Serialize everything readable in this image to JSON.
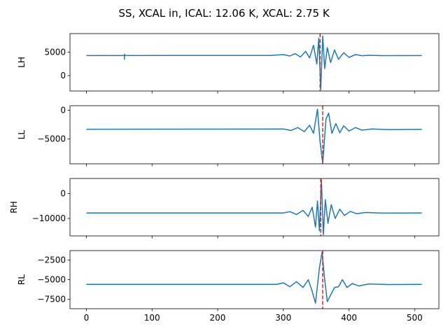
{
  "chart_data": {
    "title": "SS, XCAL in, ICAL: 12.06 K, XCAL: 2.75 K",
    "type": "line",
    "shared_x": {
      "lim": [
        -25,
        537
      ],
      "ticks": [
        0,
        100,
        200,
        300,
        400,
        500
      ],
      "tick_labels": [
        "0",
        "100",
        "200",
        "300",
        "400",
        "500"
      ]
    },
    "line_color": "#1f77b4",
    "marker_color": "#d62728",
    "panels": [
      {
        "ylabel": "LH",
        "ylim": [
          -3300,
          9000
        ],
        "yticks": [
          0,
          5000
        ],
        "ytick_labels": [
          "0",
          "5000"
        ],
        "baseline": 4300,
        "marker_x": 356,
        "glitch": {
          "x": 58,
          "min": 3400,
          "max": 4700
        },
        "series": [
          {
            "x": 0,
            "y": 4300
          },
          {
            "x": 280,
            "y": 4320
          },
          {
            "x": 300,
            "y": 4500
          },
          {
            "x": 310,
            "y": 4200
          },
          {
            "x": 318,
            "y": 4700
          },
          {
            "x": 326,
            "y": 4000
          },
          {
            "x": 334,
            "y": 5200
          },
          {
            "x": 340,
            "y": 3800
          },
          {
            "x": 346,
            "y": 6500
          },
          {
            "x": 351,
            "y": 2500
          },
          {
            "x": 354,
            "y": 8000
          },
          {
            "x": 357,
            "y": -3000
          },
          {
            "x": 360,
            "y": 8500
          },
          {
            "x": 363,
            "y": 1500
          },
          {
            "x": 367,
            "y": 6000
          },
          {
            "x": 372,
            "y": 2800
          },
          {
            "x": 378,
            "y": 5500
          },
          {
            "x": 384,
            "y": 3500
          },
          {
            "x": 392,
            "y": 4900
          },
          {
            "x": 400,
            "y": 3900
          },
          {
            "x": 410,
            "y": 4500
          },
          {
            "x": 420,
            "y": 4250
          },
          {
            "x": 430,
            "y": 4350
          },
          {
            "x": 450,
            "y": 4280
          },
          {
            "x": 511,
            "y": 4300
          }
        ]
      },
      {
        "ylabel": "LL",
        "ylim": [
          -9300,
          800
        ],
        "yticks": [
          0,
          -5000
        ],
        "ytick_labels": [
          "0",
          "−5000"
        ],
        "baseline": -3300,
        "marker_x": 360,
        "series": [
          {
            "x": 0,
            "y": -3300
          },
          {
            "x": 300,
            "y": -3250
          },
          {
            "x": 312,
            "y": -3500
          },
          {
            "x": 322,
            "y": -3000
          },
          {
            "x": 332,
            "y": -3700
          },
          {
            "x": 340,
            "y": -2600
          },
          {
            "x": 346,
            "y": -4000
          },
          {
            "x": 352,
            "y": 200
          },
          {
            "x": 356,
            "y": -5500
          },
          {
            "x": 360,
            "y": -9200
          },
          {
            "x": 365,
            "y": -1500
          },
          {
            "x": 369,
            "y": -500
          },
          {
            "x": 374,
            "y": -4000
          },
          {
            "x": 380,
            "y": -2300
          },
          {
            "x": 386,
            "y": -3900
          },
          {
            "x": 392,
            "y": -2700
          },
          {
            "x": 400,
            "y": -3600
          },
          {
            "x": 410,
            "y": -3000
          },
          {
            "x": 420,
            "y": -3450
          },
          {
            "x": 435,
            "y": -3250
          },
          {
            "x": 460,
            "y": -3350
          },
          {
            "x": 511,
            "y": -3300
          }
        ]
      },
      {
        "ylabel": "RH",
        "ylim": [
          -17000,
          6000
        ],
        "yticks": [
          0,
          -10000
        ],
        "ytick_labels": [
          "0",
          "−10000"
        ],
        "baseline": -7800,
        "marker_x": 357,
        "series": [
          {
            "x": 0,
            "y": -7800
          },
          {
            "x": 300,
            "y": -7800
          },
          {
            "x": 310,
            "y": -7300
          },
          {
            "x": 320,
            "y": -8400
          },
          {
            "x": 330,
            "y": -6800
          },
          {
            "x": 338,
            "y": -9200
          },
          {
            "x": 344,
            "y": -5500
          },
          {
            "x": 349,
            "y": -13500
          },
          {
            "x": 352,
            "y": -3000
          },
          {
            "x": 355,
            "y": -15000
          },
          {
            "x": 358,
            "y": 5500
          },
          {
            "x": 361,
            "y": -16500
          },
          {
            "x": 364,
            "y": -2500
          },
          {
            "x": 368,
            "y": -12000
          },
          {
            "x": 373,
            "y": -4500
          },
          {
            "x": 379,
            "y": -10000
          },
          {
            "x": 386,
            "y": -6300
          },
          {
            "x": 393,
            "y": -8800
          },
          {
            "x": 402,
            "y": -7200
          },
          {
            "x": 412,
            "y": -8100
          },
          {
            "x": 425,
            "y": -7600
          },
          {
            "x": 450,
            "y": -7850
          },
          {
            "x": 511,
            "y": -7800
          }
        ]
      },
      {
        "ylabel": "RL",
        "ylim": [
          -8700,
          -1300
        ],
        "yticks": [
          -2500,
          -5000,
          -7500
        ],
        "ytick_labels": [
          "−2500",
          "−5000",
          "−7500"
        ],
        "baseline": -5600,
        "marker_x": 360,
        "series": [
          {
            "x": 0,
            "y": -5600
          },
          {
            "x": 290,
            "y": -5600
          },
          {
            "x": 300,
            "y": -5400
          },
          {
            "x": 310,
            "y": -5900
          },
          {
            "x": 320,
            "y": -5250
          },
          {
            "x": 330,
            "y": -6000
          },
          {
            "x": 338,
            "y": -5000
          },
          {
            "x": 344,
            "y": -6500
          },
          {
            "x": 349,
            "y": -8000
          },
          {
            "x": 355,
            "y": -3500
          },
          {
            "x": 359,
            "y": -1500
          },
          {
            "x": 363,
            "y": -5000
          },
          {
            "x": 367,
            "y": -7800
          },
          {
            "x": 373,
            "y": -6800
          },
          {
            "x": 378,
            "y": -6000
          },
          {
            "x": 384,
            "y": -5900
          },
          {
            "x": 390,
            "y": -5000
          },
          {
            "x": 397,
            "y": -6000
          },
          {
            "x": 405,
            "y": -5500
          },
          {
            "x": 415,
            "y": -5800
          },
          {
            "x": 430,
            "y": -5550
          },
          {
            "x": 460,
            "y": -5620
          },
          {
            "x": 511,
            "y": -5600
          }
        ]
      }
    ]
  }
}
